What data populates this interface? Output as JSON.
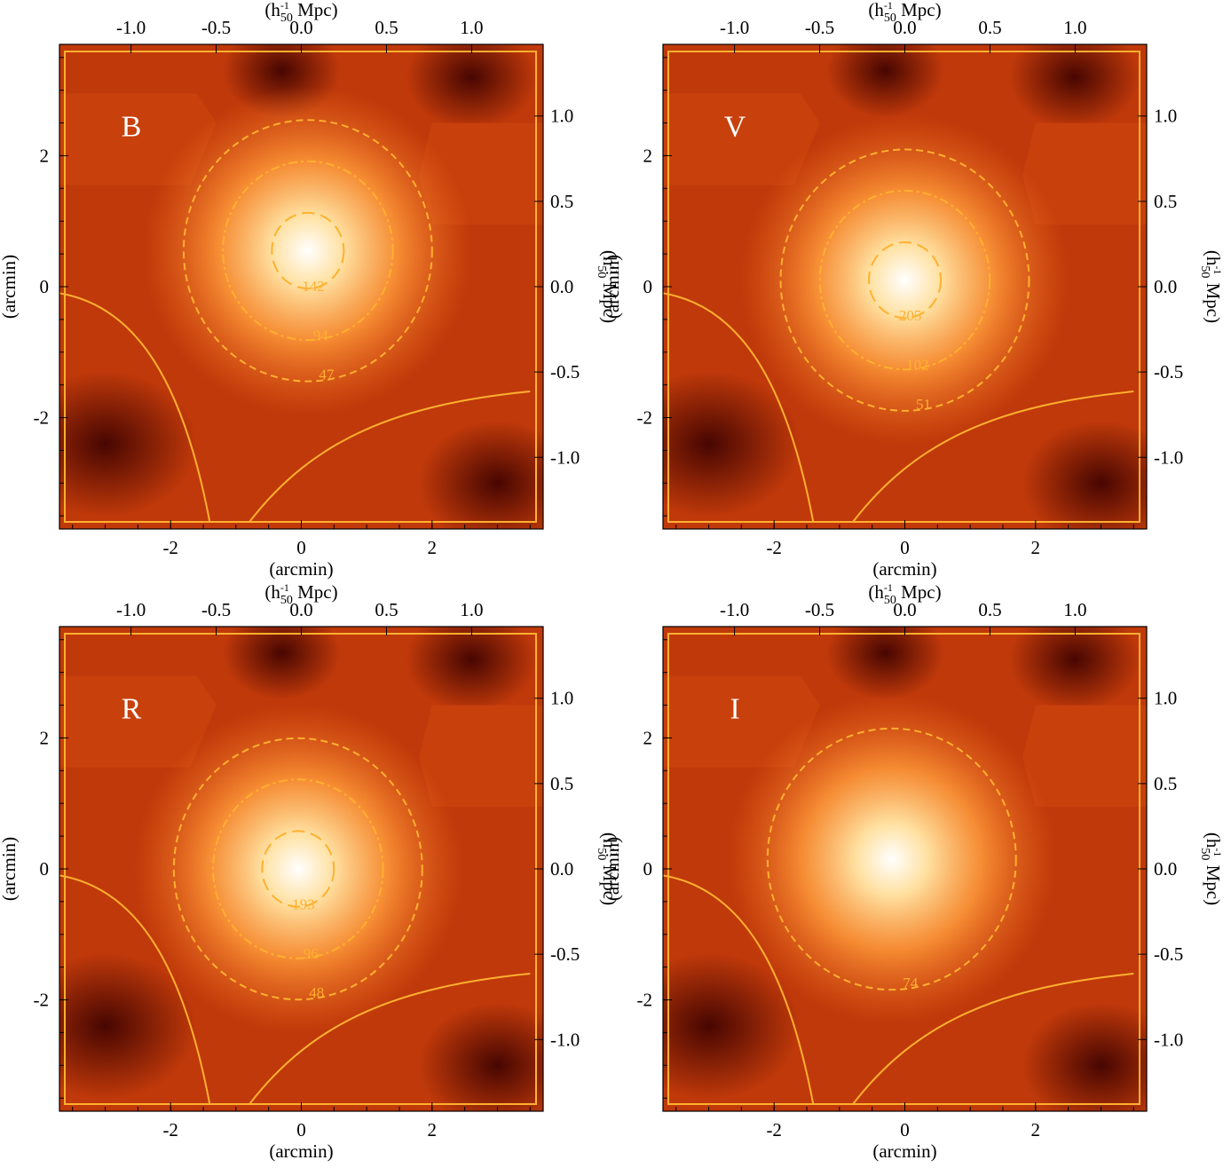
{
  "figure": {
    "tick_labels": {
      "x_bottom": [
        "-2",
        "0",
        "2"
      ],
      "x_top": [
        "-1.0",
        "-0.5",
        "0.0",
        "0.5",
        "1.0"
      ],
      "y_left": [
        "-2",
        "0",
        "2"
      ],
      "y_right": [
        "-1.0",
        "-0.5",
        "0.0",
        "0.5",
        "1.0"
      ]
    },
    "axis_labels": {
      "bottom": "(arcmin)",
      "left": "(arcmin)",
      "top": "(h",
      "right": "(h",
      "unit_sup": "-1",
      "unit_sub": "50",
      "unit_rest": " Mpc)"
    }
  },
  "colors": {
    "contour": "#ffb030",
    "low": "#3a0000",
    "mid": "#c0390a",
    "high": "#ffffff"
  },
  "chart_data": [
    {
      "type": "heatmap",
      "panel_label": "B",
      "xlim_arcmin": [
        -3.7,
        3.7
      ],
      "ylim_arcmin": [
        -3.7,
        3.7
      ],
      "xlim_mpc": [
        -1.42,
        1.42
      ],
      "ylim_mpc": [
        -1.42,
        1.42
      ],
      "peak_arcmin": [
        0.1,
        0.55
      ],
      "contour_labels": [
        "47",
        "94",
        "142"
      ],
      "contour_values": [
        47,
        94,
        142
      ]
    },
    {
      "type": "heatmap",
      "panel_label": "V",
      "xlim_arcmin": [
        -3.7,
        3.7
      ],
      "ylim_arcmin": [
        -3.7,
        3.7
      ],
      "xlim_mpc": [
        -1.42,
        1.42
      ],
      "ylim_mpc": [
        -1.42,
        1.42
      ],
      "peak_arcmin": [
        0.0,
        0.1
      ],
      "contour_labels": [
        "51",
        "102",
        "205"
      ],
      "contour_values": [
        51,
        102,
        205
      ]
    },
    {
      "type": "heatmap",
      "panel_label": "R",
      "xlim_arcmin": [
        -3.7,
        3.7
      ],
      "ylim_arcmin": [
        -3.7,
        3.7
      ],
      "xlim_mpc": [
        -1.42,
        1.42
      ],
      "ylim_mpc": [
        -1.42,
        1.42
      ],
      "peak_arcmin": [
        -0.05,
        0.0
      ],
      "contour_labels": [
        "48",
        "96",
        "193"
      ],
      "contour_values": [
        48,
        96,
        193
      ]
    },
    {
      "type": "heatmap",
      "panel_label": "I",
      "xlim_arcmin": [
        -3.7,
        3.7
      ],
      "ylim_arcmin": [
        -3.7,
        3.7
      ],
      "xlim_mpc": [
        -1.42,
        1.42
      ],
      "ylim_mpc": [
        -1.42,
        1.42
      ],
      "peak_arcmin": [
        -0.2,
        0.15
      ],
      "contour_labels": [
        "74"
      ],
      "contour_values": [
        74
      ]
    }
  ]
}
